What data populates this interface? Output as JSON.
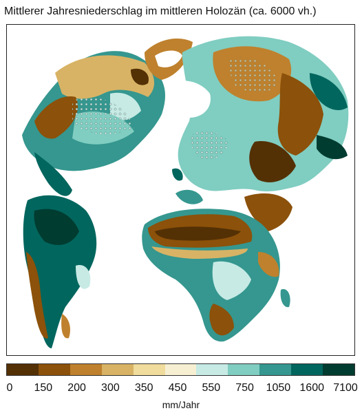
{
  "title": "Mittlerer Jahresniederschlag im mittleren Holozän (ca. 6000 vh.)",
  "legend": {
    "colors": [
      "#543005",
      "#8c510a",
      "#bf812d",
      "#d8b365",
      "#f0dc9c",
      "#f6efd2",
      "#c7eae5",
      "#80cdc1",
      "#35978f",
      "#01665e",
      "#003c30"
    ],
    "ticks": [
      "0",
      "150",
      "200",
      "300",
      "350",
      "450",
      "550",
      "750",
      "1050",
      "1600",
      "7100"
    ],
    "unit": "mm/Jahr"
  },
  "map": {
    "projection": "north polar azimuthal",
    "continents": [
      "north-america",
      "greenland",
      "eurasia",
      "africa",
      "south-america",
      "arabia"
    ]
  }
}
